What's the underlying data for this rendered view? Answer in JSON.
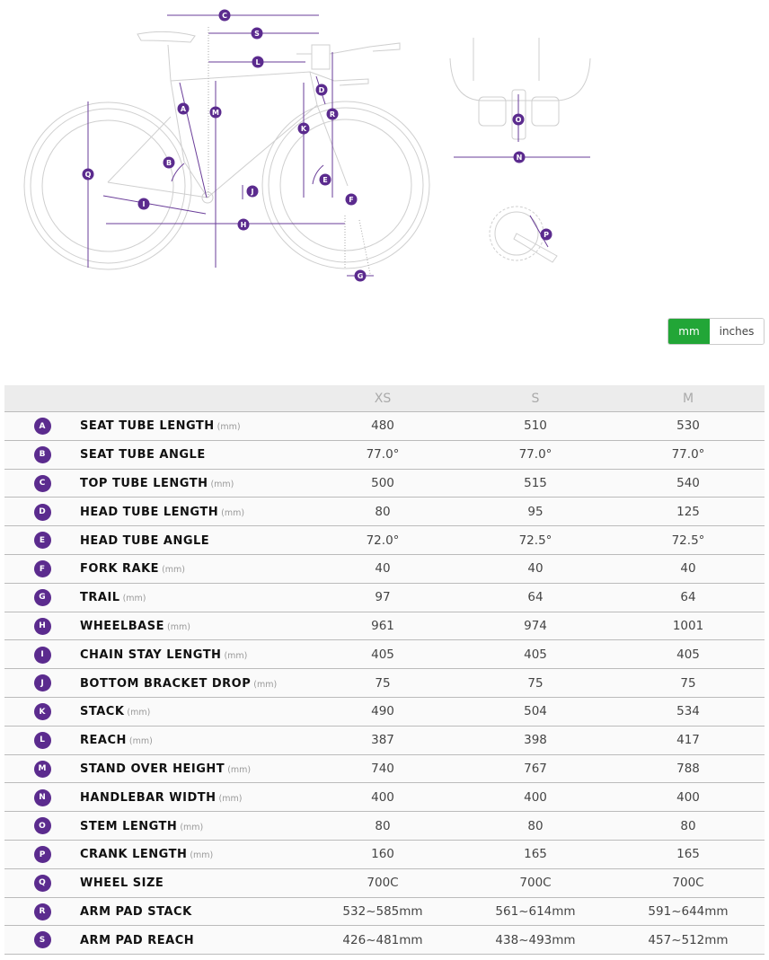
{
  "accent_color": "#5b2b8e",
  "active_color": "#22a637",
  "diagram": {
    "labels": [
      "A",
      "B",
      "C",
      "D",
      "E",
      "F",
      "G",
      "H",
      "I",
      "J",
      "K",
      "L",
      "M",
      "N",
      "O",
      "P",
      "Q",
      "R",
      "S"
    ]
  },
  "units": {
    "mm": "mm",
    "inches": "inches",
    "selected": "mm"
  },
  "table": {
    "sizes": [
      "XS",
      "S",
      "M"
    ],
    "rows": [
      {
        "letter": "A",
        "label": "SEAT TUBE LENGTH",
        "unit": "(mm)",
        "values": [
          "480",
          "510",
          "530"
        ]
      },
      {
        "letter": "B",
        "label": "SEAT TUBE ANGLE",
        "unit": "",
        "values": [
          "77.0°",
          "77.0°",
          "77.0°"
        ]
      },
      {
        "letter": "C",
        "label": "TOP TUBE LENGTH",
        "unit": "(mm)",
        "values": [
          "500",
          "515",
          "540"
        ]
      },
      {
        "letter": "D",
        "label": "HEAD TUBE LENGTH",
        "unit": "(mm)",
        "values": [
          "80",
          "95",
          "125"
        ]
      },
      {
        "letter": "E",
        "label": "HEAD TUBE ANGLE",
        "unit": "",
        "values": [
          "72.0°",
          "72.5°",
          "72.5°"
        ]
      },
      {
        "letter": "F",
        "label": "FORK RAKE",
        "unit": "(mm)",
        "values": [
          "40",
          "40",
          "40"
        ]
      },
      {
        "letter": "G",
        "label": "TRAIL",
        "unit": "(mm)",
        "values": [
          "97",
          "64",
          "64"
        ]
      },
      {
        "letter": "H",
        "label": "WHEELBASE",
        "unit": "(mm)",
        "values": [
          "961",
          "974",
          "1001"
        ]
      },
      {
        "letter": "I",
        "label": "CHAIN STAY LENGTH",
        "unit": "(mm)",
        "values": [
          "405",
          "405",
          "405"
        ]
      },
      {
        "letter": "J",
        "label": "BOTTOM BRACKET DROP",
        "unit": "(mm)",
        "values": [
          "75",
          "75",
          "75"
        ]
      },
      {
        "letter": "K",
        "label": "STACK",
        "unit": "(mm)",
        "values": [
          "490",
          "504",
          "534"
        ]
      },
      {
        "letter": "L",
        "label": "REACH",
        "unit": "(mm)",
        "values": [
          "387",
          "398",
          "417"
        ]
      },
      {
        "letter": "M",
        "label": "STAND OVER HEIGHT",
        "unit": "(mm)",
        "values": [
          "740",
          "767",
          "788"
        ]
      },
      {
        "letter": "N",
        "label": "HANDLEBAR WIDTH",
        "unit": "(mm)",
        "values": [
          "400",
          "400",
          "400"
        ]
      },
      {
        "letter": "O",
        "label": "STEM LENGTH",
        "unit": "(mm)",
        "values": [
          "80",
          "80",
          "80"
        ]
      },
      {
        "letter": "P",
        "label": "CRANK LENGTH",
        "unit": "(mm)",
        "values": [
          "160",
          "165",
          "165"
        ]
      },
      {
        "letter": "Q",
        "label": "WHEEL SIZE",
        "unit": "",
        "values": [
          "700C",
          "700C",
          "700C"
        ]
      },
      {
        "letter": "R",
        "label": "ARM PAD STACK",
        "unit": "",
        "values": [
          "532~585mm",
          "561~614mm",
          "591~644mm"
        ]
      },
      {
        "letter": "S",
        "label": "ARM PAD REACH",
        "unit": "",
        "values": [
          "426~481mm",
          "438~493mm",
          "457~512mm"
        ]
      }
    ]
  }
}
